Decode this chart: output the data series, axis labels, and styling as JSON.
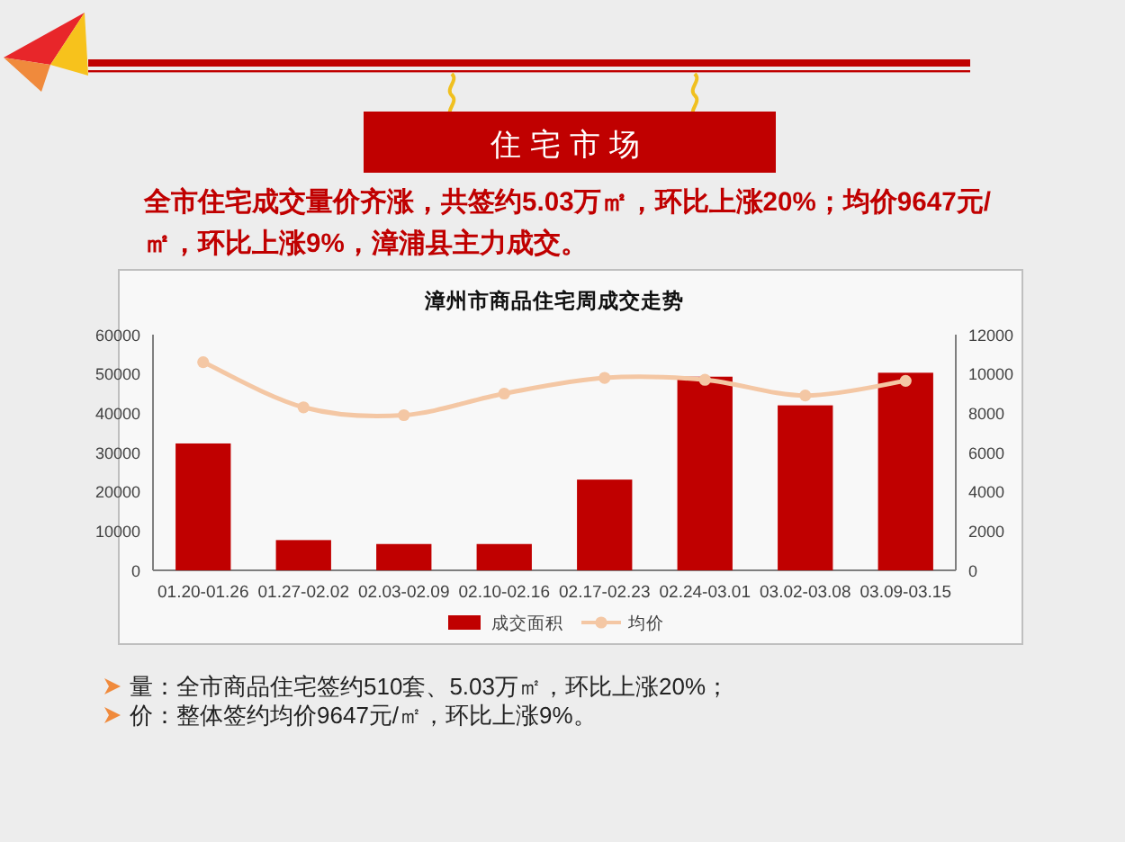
{
  "chart_data": {
    "type": "bar",
    "title": "漳州市商品住宅周成交走势",
    "categories": [
      "01.20-01.26",
      "01.27-02.02",
      "02.03-02.09",
      "02.10-02.16",
      "02.17-02.23",
      "02.24-03.01",
      "03.02-03.08",
      "03.09-03.15"
    ],
    "series": [
      {
        "name": "成交面积",
        "color": "#c00000",
        "values": [
          32300,
          7700,
          6700,
          6700,
          23100,
          49300,
          42000,
          50300
        ]
      },
      {
        "name": "均价",
        "type": "line",
        "axis": "y2",
        "color": "#f4c7a4",
        "values": [
          10600,
          8300,
          7900,
          9000,
          9800,
          9700,
          8900,
          9647
        ]
      }
    ],
    "ylim": [
      0,
      60000
    ],
    "yticks": [
      0,
      10000,
      20000,
      30000,
      40000,
      50000,
      60000
    ],
    "y2lim": [
      0,
      12000
    ],
    "y2ticks": [
      0,
      2000,
      4000,
      6000,
      8000,
      10000,
      12000
    ],
    "legend": "bottom",
    "marker": "circle",
    "annotations": [
      "住宅市场",
      "全市住宅成交量价齐涨，共签约5.03万㎡，环比上涨20%；均价9647元/㎡，环比上涨9%，漳浦县主力成交。",
      "量：全市商品住宅签约510套、5.03万㎡，环比上涨20%；",
      "价：整体签约均价9647元/㎡，环比上涨9%。"
    ]
  }
}
